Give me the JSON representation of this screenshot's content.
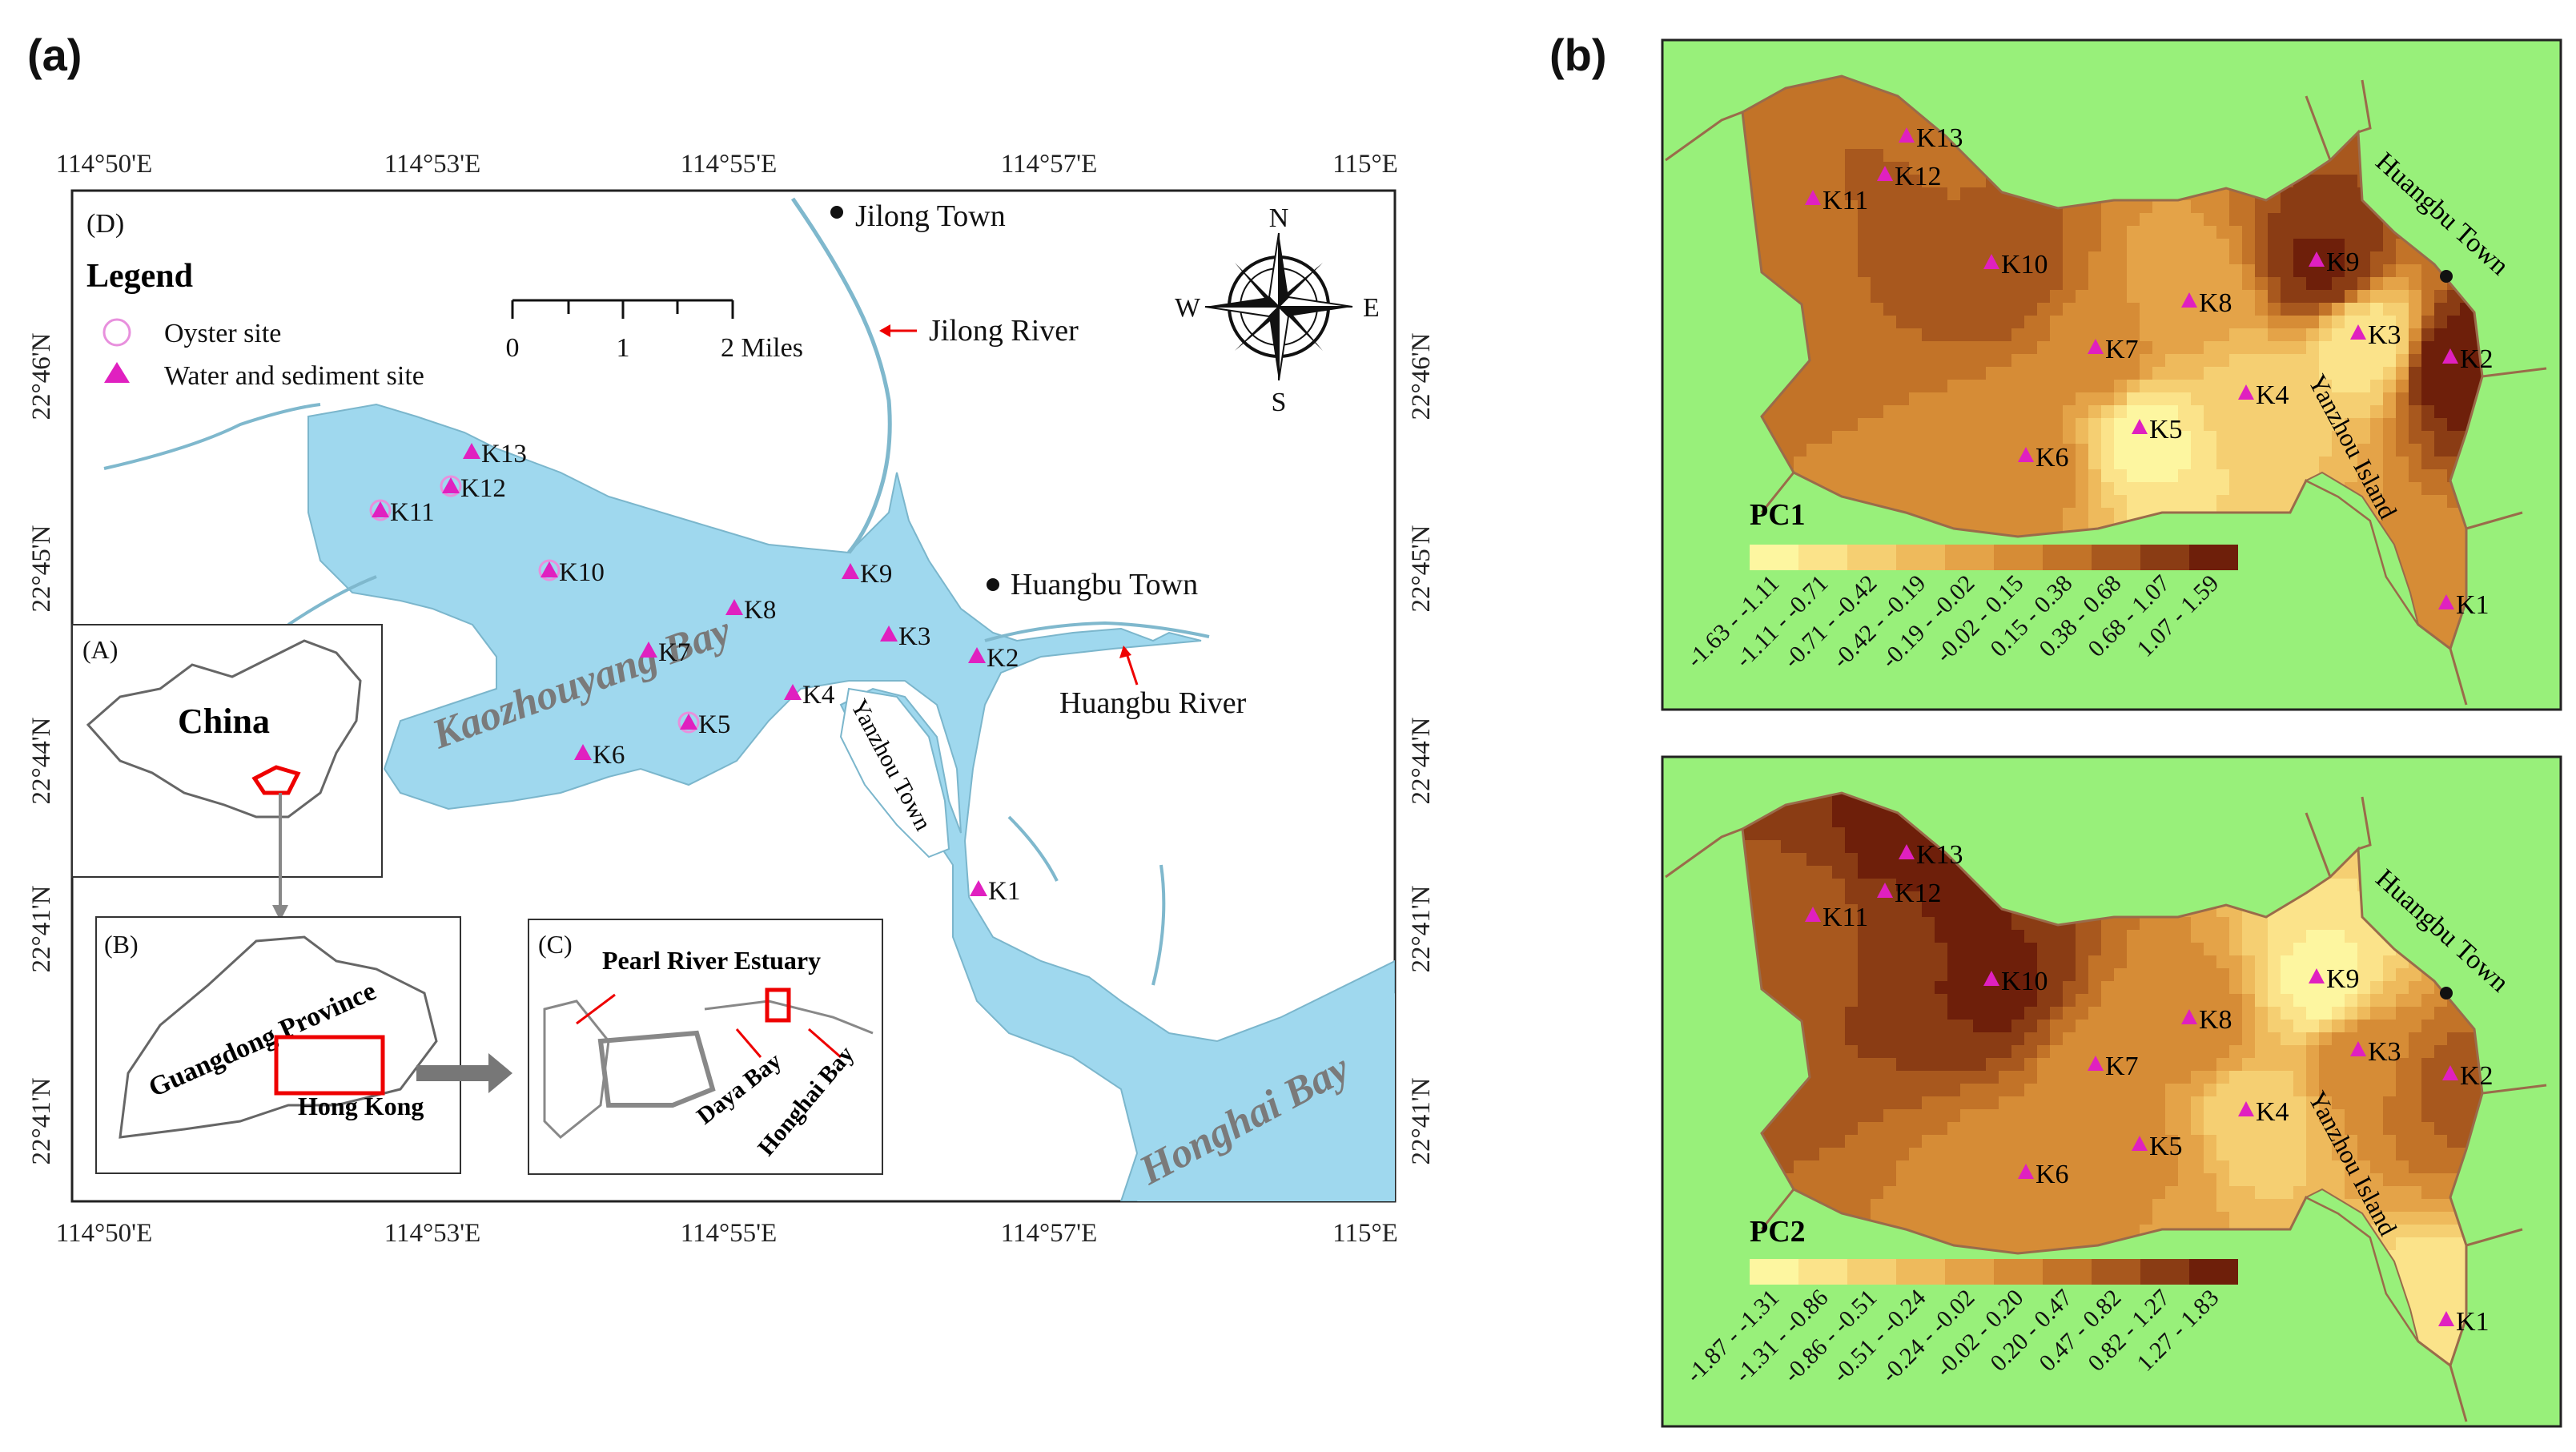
{
  "panels": {
    "a": "(a)",
    "b": "(b)"
  },
  "map_d": {
    "label": "(D)",
    "lon_ticks": [
      "114°50'E",
      "114°53'E",
      "114°55'E",
      "114°57'E",
      "115°E"
    ],
    "lat_ticks": [
      "22°46'N",
      "22°45'N",
      "22°44'N",
      "22°41'N",
      "22°41'N"
    ],
    "legend": {
      "title": "Legend",
      "oyster": "Oyster site",
      "water": "Water and sediment site"
    },
    "scale": {
      "labels": [
        "0",
        "1",
        "2 Miles"
      ]
    },
    "compass": {
      "n": "N",
      "s": "S",
      "e": "E",
      "w": "W"
    },
    "places": {
      "jilong_town": "Jilong Town",
      "jilong_river": "Jilong River",
      "huangbu_town": "Huangbu Town",
      "huangbu_river": "Huangbu River",
      "yanzhou_town": "Yanzhou Town",
      "kaozhouyang_bay": "Kaozhouyang Bay",
      "honghai_bay": "Honghai Bay"
    },
    "sites": [
      "K1",
      "K2",
      "K3",
      "K4",
      "K5",
      "K6",
      "K7",
      "K8",
      "K9",
      "K10",
      "K11",
      "K12",
      "K13"
    ]
  },
  "inset_a": {
    "label": "(A)",
    "country": "China"
  },
  "inset_b": {
    "label": "(B)",
    "province": "Guangdong Province",
    "hk": "Hong Kong"
  },
  "inset_c": {
    "label": "(C)",
    "estuary": "Pearl River Estuary",
    "daya": "Daya Bay",
    "honghai": "Honghai Bay"
  },
  "pc1": {
    "title": "PC1",
    "classes": [
      "-1.63 - -1.11",
      "-1.11 - -0.71",
      "-0.71 - -0.42",
      "-0.42 - -0.19",
      "-0.19 - -0.02",
      "-0.02 - 0.15",
      "0.15 - 0.38",
      "0.38 - 0.68",
      "0.68 - 1.07",
      "1.07 - 1.59"
    ],
    "site_values": {
      "K1": 0.1,
      "K2": 1.5,
      "K3": -1.2,
      "K4": -0.9,
      "K5": -1.4,
      "K6": 0.1,
      "K7": 0.2,
      "K8": -0.3,
      "K9": 1.3,
      "K10": 0.8,
      "K11": 0.6,
      "K12": 0.7,
      "K13": 0.5
    }
  },
  "pc2": {
    "title": "PC2",
    "classes": [
      "-1.87 - -1.31",
      "-1.31 - -0.86",
      "-0.86 - -0.51",
      "-0.51 - -0.24",
      "-0.24 - -0.02",
      "-0.02 - 0.20",
      "0.20 - 0.47",
      "0.47 - 0.82",
      "0.82 - 1.27",
      "1.27 - 1.83"
    ],
    "site_values": {
      "K1": -1.5,
      "K2": 0.8,
      "K3": 0.3,
      "K4": -1.0,
      "K5": 0.0,
      "K6": 0.1,
      "K7": 0.1,
      "K8": 0.2,
      "K9": -1.6,
      "K10": 1.5,
      "K11": 0.9,
      "K12": 1.4,
      "K13": 1.8
    }
  },
  "b_labels": {
    "huangbu_town": "Huangbu Town",
    "yanzhou_island": "Yanzhou Island"
  },
  "colors": {
    "water": "#9fd8ee",
    "land": "#98f07a",
    "marker": "#e020c0",
    "ramp": [
      "#fdf6a0",
      "#fbe38a",
      "#f5cf72",
      "#eeba5c",
      "#e4a348",
      "#d68c36",
      "#c27328",
      "#a8581e",
      "#8a3c14",
      "#6e1f0a"
    ]
  }
}
